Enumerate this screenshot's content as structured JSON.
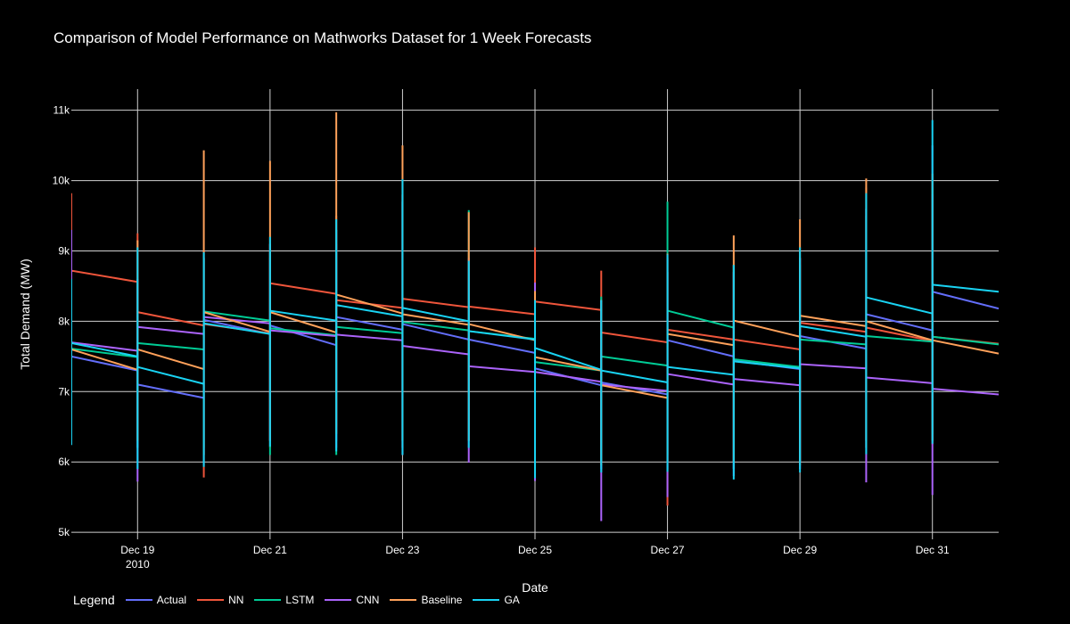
{
  "chart_data": {
    "type": "line",
    "title": "Comparison of Model Performance on Mathworks Dataset for 1 Week Forecasts",
    "xlabel": "Date",
    "ylabel": "Total Demand (MW)",
    "xlim": [
      "2010-12-18",
      "2011-01-01"
    ],
    "ylim": [
      4900,
      11300
    ],
    "x_ticks": [
      {
        "date": "2010-12-19",
        "label": "Dec 19",
        "sublabel": "2010"
      },
      {
        "date": "2010-12-21",
        "label": "Dec 21"
      },
      {
        "date": "2010-12-23",
        "label": "Dec 23"
      },
      {
        "date": "2010-12-25",
        "label": "Dec 25"
      },
      {
        "date": "2010-12-27",
        "label": "Dec 27"
      },
      {
        "date": "2010-12-29",
        "label": "Dec 29"
      },
      {
        "date": "2010-12-31",
        "label": "Dec 31"
      }
    ],
    "y_ticks": [
      {
        "value": 5000,
        "label": "5k"
      },
      {
        "value": 6000,
        "label": "6k"
      },
      {
        "value": 7000,
        "label": "7k"
      },
      {
        "value": 8000,
        "label": "8k"
      },
      {
        "value": 9000,
        "label": "9k"
      },
      {
        "value": 10000,
        "label": "10k"
      },
      {
        "value": 11000,
        "label": "11k"
      }
    ],
    "grid": true,
    "legend_title": "Legend",
    "legend_position": "bottom-left",
    "series": [
      {
        "name": "Actual",
        "color": "#636efa",
        "segments": [
          {
            "start": "2010-12-18",
            "end": "2010-12-19",
            "v0": 7500,
            "v1": 7300,
            "low": 6800,
            "high": 8400
          },
          {
            "start": "2010-12-19",
            "end": "2010-12-20",
            "v0": 7100,
            "v1": 6910,
            "low": 6200,
            "high": 8000
          },
          {
            "start": "2010-12-20",
            "end": "2010-12-21",
            "v0": 8020,
            "v1": 7820,
            "low": 6100,
            "high": 8900
          },
          {
            "start": "2010-12-21",
            "end": "2010-12-22",
            "v0": 7940,
            "v1": 7660,
            "low": 6300,
            "high": 8900
          },
          {
            "start": "2010-12-22",
            "end": "2010-12-23",
            "v0": 8060,
            "v1": 7880,
            "low": 6300,
            "high": 9100
          },
          {
            "start": "2010-12-23",
            "end": "2010-12-24",
            "v0": 7960,
            "v1": 7740,
            "low": 6200,
            "high": 9800
          },
          {
            "start": "2010-12-24",
            "end": "2010-12-25",
            "v0": 7740,
            "v1": 7550,
            "low": 6300,
            "high": 8700
          },
          {
            "start": "2010-12-25",
            "end": "2010-12-26",
            "v0": 7330,
            "v1": 7090,
            "low": 5900,
            "high": 8300
          },
          {
            "start": "2010-12-26",
            "end": "2010-12-27",
            "v0": 7130,
            "v1": 6960,
            "low": 5900,
            "high": 8200
          },
          {
            "start": "2010-12-27",
            "end": "2010-12-28",
            "v0": 7730,
            "v1": 7500,
            "low": 5900,
            "high": 8700
          },
          {
            "start": "2010-12-28",
            "end": "2010-12-29",
            "v0": 7440,
            "v1": 7320,
            "low": 5900,
            "high": 8700
          },
          {
            "start": "2010-12-29",
            "end": "2010-12-30",
            "v0": 7790,
            "v1": 7610,
            "low": 6000,
            "high": 8900
          },
          {
            "start": "2010-12-30",
            "end": "2010-12-31",
            "v0": 8100,
            "v1": 7870,
            "low": 6200,
            "high": 9600
          },
          {
            "start": "2010-12-31",
            "end": "2011-01-01",
            "v0": 8420,
            "v1": 8180,
            "low": 6300,
            "high": 10500
          }
        ]
      },
      {
        "name": "NN",
        "color": "#ef553b",
        "segments": [
          {
            "start": "2010-12-18",
            "end": "2010-12-19",
            "v0": 8720,
            "v1": 8560,
            "low": 8200,
            "high": 9820
          },
          {
            "start": "2010-12-19",
            "end": "2010-12-20",
            "v0": 8130,
            "v1": 7940,
            "low": 7500,
            "high": 9250
          },
          {
            "start": "2010-12-20",
            "end": "2010-12-21",
            "v0": 7960,
            "v1": 7830,
            "low": 5780,
            "high": 8900
          },
          {
            "start": "2010-12-21",
            "end": "2010-12-22",
            "v0": 8540,
            "v1": 8390,
            "low": 6200,
            "high": 9100
          },
          {
            "start": "2010-12-22",
            "end": "2010-12-23",
            "v0": 8300,
            "v1": 8190,
            "low": 6500,
            "high": 9500
          },
          {
            "start": "2010-12-23",
            "end": "2010-12-24",
            "v0": 8320,
            "v1": 8200,
            "low": 6200,
            "high": 9800
          },
          {
            "start": "2010-12-24",
            "end": "2010-12-25",
            "v0": 8210,
            "v1": 8100,
            "low": 6300,
            "high": 9000
          },
          {
            "start": "2010-12-25",
            "end": "2010-12-26",
            "v0": 8280,
            "v1": 8160,
            "low": 5900,
            "high": 9050
          },
          {
            "start": "2010-12-26",
            "end": "2010-12-27",
            "v0": 7840,
            "v1": 7700,
            "low": 6100,
            "high": 8720
          },
          {
            "start": "2010-12-27",
            "end": "2010-12-28",
            "v0": 7880,
            "v1": 7740,
            "low": 5380,
            "high": 8700
          },
          {
            "start": "2010-12-28",
            "end": "2010-12-29",
            "v0": 7740,
            "v1": 7600,
            "low": 6000,
            "high": 8800
          },
          {
            "start": "2010-12-29",
            "end": "2010-12-30",
            "v0": 7980,
            "v1": 7850,
            "low": 6000,
            "high": 8900
          },
          {
            "start": "2010-12-30",
            "end": "2010-12-31",
            "v0": 7910,
            "v1": 7720,
            "low": 6300,
            "high": 9900
          },
          {
            "start": "2010-12-31",
            "end": "2011-01-01",
            "v0": 7780,
            "v1": 7680,
            "low": 6250,
            "high": 10000
          }
        ]
      },
      {
        "name": "LSTM",
        "color": "#00cc96",
        "segments": [
          {
            "start": "2010-12-18",
            "end": "2010-12-19",
            "v0": 7610,
            "v1": 7490,
            "low": 6500,
            "high": 8600
          },
          {
            "start": "2010-12-19",
            "end": "2010-12-20",
            "v0": 7690,
            "v1": 7600,
            "low": 6200,
            "high": 8600
          },
          {
            "start": "2010-12-20",
            "end": "2010-12-21",
            "v0": 8140,
            "v1": 8010,
            "low": 6200,
            "high": 8900
          },
          {
            "start": "2010-12-21",
            "end": "2010-12-22",
            "v0": 7900,
            "v1": 7800,
            "low": 6100,
            "high": 9000
          },
          {
            "start": "2010-12-22",
            "end": "2010-12-23",
            "v0": 7920,
            "v1": 7830,
            "low": 6100,
            "high": 9300
          },
          {
            "start": "2010-12-23",
            "end": "2010-12-24",
            "v0": 7990,
            "v1": 7870,
            "low": 6300,
            "high": 9700
          },
          {
            "start": "2010-12-24",
            "end": "2010-12-25",
            "v0": 7860,
            "v1": 7750,
            "low": 6400,
            "high": 9580
          },
          {
            "start": "2010-12-25",
            "end": "2010-12-26",
            "v0": 7420,
            "v1": 7300,
            "low": 6000,
            "high": 8400
          },
          {
            "start": "2010-12-26",
            "end": "2010-12-27",
            "v0": 7500,
            "v1": 7370,
            "low": 6000,
            "high": 8350
          },
          {
            "start": "2010-12-27",
            "end": "2010-12-28",
            "v0": 8150,
            "v1": 7910,
            "low": 6100,
            "high": 9700
          },
          {
            "start": "2010-12-28",
            "end": "2010-12-29",
            "v0": 7460,
            "v1": 7350,
            "low": 5900,
            "high": 8800
          },
          {
            "start": "2010-12-29",
            "end": "2010-12-30",
            "v0": 7740,
            "v1": 7670,
            "low": 6000,
            "high": 8800
          },
          {
            "start": "2010-12-30",
            "end": "2010-12-31",
            "v0": 7790,
            "v1": 7710,
            "low": 6300,
            "high": 9500
          },
          {
            "start": "2010-12-31",
            "end": "2011-01-01",
            "v0": 7780,
            "v1": 7670,
            "low": 6400,
            "high": 9900
          }
        ]
      },
      {
        "name": "CNN",
        "color": "#ab63fa",
        "segments": [
          {
            "start": "2010-12-18",
            "end": "2010-12-19",
            "v0": 7700,
            "v1": 7580,
            "low": 6500,
            "high": 9300
          },
          {
            "start": "2010-12-19",
            "end": "2010-12-20",
            "v0": 7920,
            "v1": 7820,
            "low": 5720,
            "high": 8600
          },
          {
            "start": "2010-12-20",
            "end": "2010-12-21",
            "v0": 8060,
            "v1": 7970,
            "low": 5950,
            "high": 9000
          },
          {
            "start": "2010-12-21",
            "end": "2010-12-22",
            "v0": 7870,
            "v1": 7790,
            "low": 6300,
            "high": 9100
          },
          {
            "start": "2010-12-22",
            "end": "2010-12-23",
            "v0": 7810,
            "v1": 7730,
            "low": 6200,
            "high": 9300
          },
          {
            "start": "2010-12-23",
            "end": "2010-12-24",
            "v0": 7650,
            "v1": 7530,
            "low": 6100,
            "high": 9700
          },
          {
            "start": "2010-12-24",
            "end": "2010-12-25",
            "v0": 7360,
            "v1": 7280,
            "low": 5990,
            "high": 8900
          },
          {
            "start": "2010-12-25",
            "end": "2010-12-26",
            "v0": 7280,
            "v1": 7140,
            "low": 5730,
            "high": 8550
          },
          {
            "start": "2010-12-26",
            "end": "2010-12-27",
            "v0": 7100,
            "v1": 7010,
            "low": 5160,
            "high": 8300
          },
          {
            "start": "2010-12-27",
            "end": "2010-12-28",
            "v0": 7250,
            "v1": 7100,
            "low": 5500,
            "high": 8900
          },
          {
            "start": "2010-12-28",
            "end": "2010-12-29",
            "v0": 7180,
            "v1": 7090,
            "low": 5800,
            "high": 8700
          },
          {
            "start": "2010-12-29",
            "end": "2010-12-30",
            "v0": 7390,
            "v1": 7330,
            "low": 5900,
            "high": 8900
          },
          {
            "start": "2010-12-30",
            "end": "2010-12-31",
            "v0": 7200,
            "v1": 7120,
            "low": 5710,
            "high": 9600
          },
          {
            "start": "2010-12-31",
            "end": "2011-01-01",
            "v0": 7040,
            "v1": 6960,
            "low": 5530,
            "high": 9800
          }
        ]
      },
      {
        "name": "Baseline",
        "color": "#ffa15a",
        "segments": [
          {
            "start": "2010-12-18",
            "end": "2010-12-19",
            "v0": 7600,
            "v1": 7310,
            "low": 6500,
            "high": 8500
          },
          {
            "start": "2010-12-19",
            "end": "2010-12-20",
            "v0": 7600,
            "v1": 7320,
            "low": 6300,
            "high": 9150
          },
          {
            "start": "2010-12-20",
            "end": "2010-12-21",
            "v0": 8130,
            "v1": 7850,
            "low": 6100,
            "high": 10430
          },
          {
            "start": "2010-12-21",
            "end": "2010-12-22",
            "v0": 8130,
            "v1": 7840,
            "low": 6300,
            "high": 10280
          },
          {
            "start": "2010-12-22",
            "end": "2010-12-23",
            "v0": 8380,
            "v1": 8110,
            "low": 6400,
            "high": 10970
          },
          {
            "start": "2010-12-23",
            "end": "2010-12-24",
            "v0": 8100,
            "v1": 7950,
            "low": 6300,
            "high": 10500
          },
          {
            "start": "2010-12-24",
            "end": "2010-12-25",
            "v0": 7960,
            "v1": 7730,
            "low": 6300,
            "high": 9550
          },
          {
            "start": "2010-12-25",
            "end": "2010-12-26",
            "v0": 7490,
            "v1": 7300,
            "low": 6000,
            "high": 8430
          },
          {
            "start": "2010-12-26",
            "end": "2010-12-27",
            "v0": 7090,
            "v1": 6910,
            "low": 5950,
            "high": 8300
          },
          {
            "start": "2010-12-27",
            "end": "2010-12-28",
            "v0": 7820,
            "v1": 7660,
            "low": 6000,
            "high": 8960
          },
          {
            "start": "2010-12-28",
            "end": "2010-12-29",
            "v0": 8010,
            "v1": 7780,
            "low": 6000,
            "high": 9220
          },
          {
            "start": "2010-12-29",
            "end": "2010-12-30",
            "v0": 8080,
            "v1": 7930,
            "low": 5950,
            "high": 9450
          },
          {
            "start": "2010-12-30",
            "end": "2010-12-31",
            "v0": 8000,
            "v1": 7730,
            "low": 6200,
            "high": 10030
          },
          {
            "start": "2010-12-31",
            "end": "2011-01-01",
            "v0": 7730,
            "v1": 7540,
            "low": 6300,
            "high": 10100
          }
        ]
      },
      {
        "name": "GA",
        "color": "#19d3f3",
        "segments": [
          {
            "start": "2010-12-18",
            "end": "2010-12-19",
            "v0": 7690,
            "v1": 7500,
            "low": 6240,
            "high": 8600
          },
          {
            "start": "2010-12-19",
            "end": "2010-12-20",
            "v0": 7350,
            "v1": 7110,
            "low": 5900,
            "high": 9050
          },
          {
            "start": "2010-12-20",
            "end": "2010-12-21",
            "v0": 7970,
            "v1": 7820,
            "low": 5930,
            "high": 8980
          },
          {
            "start": "2010-12-21",
            "end": "2010-12-22",
            "v0": 8150,
            "v1": 8010,
            "low": 6220,
            "high": 9200
          },
          {
            "start": "2010-12-22",
            "end": "2010-12-23",
            "v0": 8230,
            "v1": 8070,
            "low": 6150,
            "high": 9450
          },
          {
            "start": "2010-12-23",
            "end": "2010-12-24",
            "v0": 8190,
            "v1": 8000,
            "low": 6100,
            "high": 10020
          },
          {
            "start": "2010-12-24",
            "end": "2010-12-25",
            "v0": 7860,
            "v1": 7740,
            "low": 6200,
            "high": 8860
          },
          {
            "start": "2010-12-25",
            "end": "2010-12-26",
            "v0": 7620,
            "v1": 7310,
            "low": 5770,
            "high": 8300
          },
          {
            "start": "2010-12-26",
            "end": "2010-12-27",
            "v0": 7300,
            "v1": 7130,
            "low": 5850,
            "high": 8300
          },
          {
            "start": "2010-12-27",
            "end": "2010-12-28",
            "v0": 7350,
            "v1": 7240,
            "low": 5860,
            "high": 8950
          },
          {
            "start": "2010-12-28",
            "end": "2010-12-29",
            "v0": 7430,
            "v1": 7330,
            "low": 5750,
            "high": 8800
          },
          {
            "start": "2010-12-29",
            "end": "2010-12-30",
            "v0": 7930,
            "v1": 7780,
            "low": 5850,
            "high": 9050
          },
          {
            "start": "2010-12-30",
            "end": "2010-12-31",
            "v0": 8340,
            "v1": 8110,
            "low": 6110,
            "high": 9820
          },
          {
            "start": "2010-12-31",
            "end": "2011-01-01",
            "v0": 8520,
            "v1": 8420,
            "low": 6260,
            "high": 10860
          }
        ]
      }
    ]
  }
}
